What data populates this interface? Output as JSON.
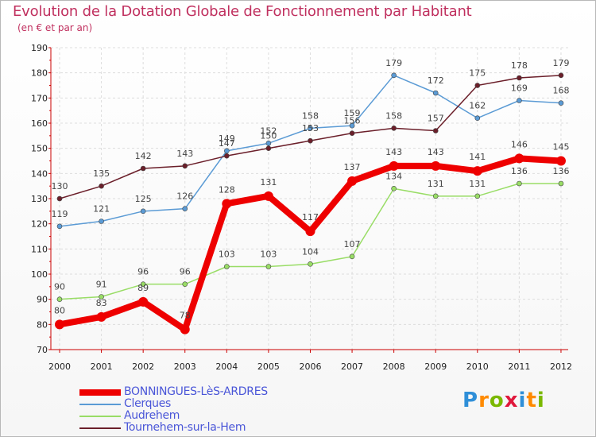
{
  "chart_data": {
    "type": "line",
    "title": "Evolution de la Dotation Globale de Fonctionnement par Habitant",
    "subtitle": "(en € et par an)",
    "xlabel": "",
    "ylabel": "",
    "categories": [
      "2000",
      "2001",
      "2002",
      "2003",
      "2004",
      "2005",
      "2006",
      "2007",
      "2008",
      "2009",
      "2010",
      "2011",
      "2012"
    ],
    "ylim": [
      70,
      190
    ],
    "yticks": [
      70,
      80,
      90,
      100,
      110,
      120,
      130,
      140,
      150,
      160,
      170,
      180,
      190
    ],
    "grid": true,
    "legend_position": "bottom-left",
    "series": [
      {
        "name": "BONNINGUES-LèS-ARDRES",
        "color": "#ee0000",
        "width": 8,
        "values": [
          80,
          83,
          89,
          78,
          128,
          131,
          117,
          137,
          143,
          143,
          141,
          146,
          145
        ]
      },
      {
        "name": "Clerques",
        "color": "#5b9bd5",
        "width": 1.5,
        "values": [
          119,
          121,
          125,
          126,
          149,
          152,
          158,
          159,
          179,
          172,
          162,
          169,
          168
        ]
      },
      {
        "name": "Audrehem",
        "color": "#99dd66",
        "width": 1.5,
        "values": [
          90,
          91,
          96,
          96,
          103,
          103,
          104,
          107,
          134,
          131,
          131,
          136,
          136
        ]
      },
      {
        "name": "Tournehem-sur-la-Hem",
        "color": "#6b1f2a",
        "width": 1.5,
        "values": [
          130,
          135,
          142,
          143,
          147,
          150,
          153,
          156,
          158,
          157,
          175,
          178,
          179
        ]
      }
    ]
  },
  "logo": {
    "letters": [
      "P",
      "r",
      "o",
      "x",
      "i",
      "t",
      "i"
    ],
    "colors": [
      "#2f8fd8",
      "#ff8a00",
      "#7ab800",
      "#e0183c",
      "#2f8fd8",
      "#ff8a00",
      "#7ab800"
    ]
  }
}
